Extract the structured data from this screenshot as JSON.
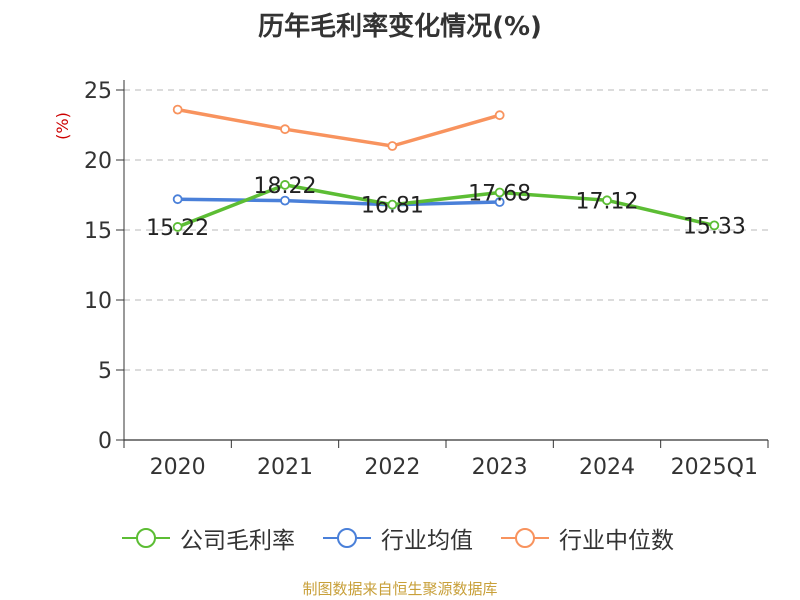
{
  "chart_data": {
    "type": "line",
    "title": "历年毛利率变化情况(%)",
    "ylabel": "(%)",
    "categories": [
      "2020",
      "2021",
      "2022",
      "2023",
      "2024",
      "2025Q1"
    ],
    "yticks": [
      "0",
      "5",
      "10",
      "15",
      "20",
      "25"
    ],
    "ylim": [
      0,
      25
    ],
    "grid": true,
    "legend_position": "bottom",
    "series": [
      {
        "name": "公司毛利率",
        "color": "#5cbd34",
        "labeled": true,
        "values": [
          15.22,
          18.22,
          16.81,
          17.68,
          17.12,
          15.33
        ],
        "labels": [
          "15.22",
          "18.22",
          "16.81",
          "17.68",
          "17.12",
          "15.33"
        ]
      },
      {
        "name": "行业均值",
        "color": "#4a80d9",
        "labeled": false,
        "values": [
          17.2,
          17.1,
          16.8,
          17.0,
          null,
          null
        ]
      },
      {
        "name": "行业中位数",
        "color": "#f8935e",
        "labeled": false,
        "values": [
          23.6,
          22.2,
          21.0,
          23.2,
          null,
          null
        ]
      }
    ]
  },
  "footer": {
    "source": "制图数据来自恒生聚源数据库"
  }
}
